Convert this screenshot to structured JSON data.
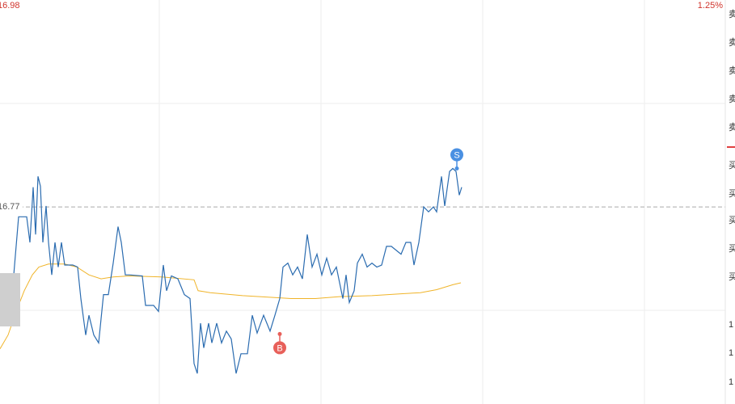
{
  "chart_data": {
    "type": "line",
    "top_price_label": "16.98",
    "top_pct_label": "1.25%",
    "ylim": [
      16.57,
      16.98
    ],
    "xlim": [
      0,
      240
    ],
    "xticks": [
      60,
      120,
      180,
      240
    ],
    "y_grid": [
      16.875,
      16.665
    ],
    "prev_close": 16.77,
    "prev_close_label": "16.77",
    "series": [
      {
        "color": "#2b6cb0",
        "x": [
          0,
          2.1,
          3.9,
          5.1,
          6.9,
          9.9,
          11.1,
          12.3,
          13.2,
          14.1,
          15,
          15.9,
          17.1,
          18,
          19.2,
          20.4,
          21.6,
          22.8,
          24,
          27,
          28.8,
          30,
          31.8,
          33,
          34.8,
          36.6,
          38.4,
          40.2,
          42,
          43.8,
          45,
          46.5,
          48,
          52.8,
          54,
          57,
          58.8,
          60.6,
          61.8,
          63.6,
          66,
          68.4,
          70.5,
          72,
          73.2,
          74.4,
          75.6,
          77.4,
          78.6,
          80.4,
          82.2,
          84,
          85.8,
          87.6,
          89.4,
          91.8,
          93.6,
          95.4,
          97.8,
          100.2,
          102,
          103.8,
          105,
          106.8,
          108.6,
          110.4,
          112.2,
          114,
          115.8,
          117.6,
          119.4,
          121.2,
          123,
          124.8,
          127.2,
          128.4,
          129.6,
          131.4,
          132.6,
          134.4,
          136.2,
          138,
          139.8,
          141.6,
          143.4,
          145.2,
          148.8,
          150.6,
          152.4,
          153.6,
          155.4,
          157.2,
          159,
          160.8,
          162,
          163.8,
          165,
          166.8,
          168,
          169.2,
          170.4,
          171.3
        ],
        "values": [
          16.652,
          16.693,
          16.668,
          16.701,
          16.76,
          16.76,
          16.734,
          16.79,
          16.742,
          16.801,
          16.791,
          16.734,
          16.771,
          16.734,
          16.701,
          16.734,
          16.709,
          16.734,
          16.711,
          16.711,
          16.709,
          16.677,
          16.64,
          16.66,
          16.64,
          16.632,
          16.681,
          16.681,
          16.713,
          16.75,
          16.734,
          16.701,
          16.701,
          16.7,
          16.67,
          16.67,
          16.664,
          16.711,
          16.685,
          16.7,
          16.697,
          16.681,
          16.677,
          16.611,
          16.601,
          16.652,
          16.627,
          16.652,
          16.632,
          16.652,
          16.632,
          16.644,
          16.636,
          16.601,
          16.621,
          16.621,
          16.66,
          16.642,
          16.66,
          16.644,
          16.66,
          16.677,
          16.709,
          16.713,
          16.701,
          16.709,
          16.697,
          16.742,
          16.709,
          16.722,
          16.701,
          16.718,
          16.701,
          16.709,
          16.677,
          16.701,
          16.673,
          16.685,
          16.713,
          16.722,
          16.709,
          16.713,
          16.709,
          16.711,
          16.73,
          16.73,
          16.722,
          16.734,
          16.734,
          16.711,
          16.734,
          16.77,
          16.765,
          16.77,
          16.765,
          16.801,
          16.771,
          16.806,
          16.809,
          16.806,
          16.782,
          16.79
        ]
      },
      {
        "color": "#f0b429",
        "x": [
          0,
          3,
          6,
          9,
          12,
          14.4,
          18,
          24,
          28.5,
          33,
          37.5,
          42,
          48,
          60,
          72,
          73.5,
          78,
          90,
          102,
          108,
          117,
          126,
          138,
          150,
          156,
          162,
          168,
          171
        ],
        "values": [
          16.626,
          16.64,
          16.664,
          16.685,
          16.701,
          16.709,
          16.712,
          16.712,
          16.709,
          16.701,
          16.697,
          16.699,
          16.7,
          16.699,
          16.696,
          16.685,
          16.683,
          16.68,
          16.678,
          16.677,
          16.677,
          16.679,
          16.68,
          16.682,
          16.683,
          16.686,
          16.691,
          16.693
        ]
      }
    ],
    "markers": [
      {
        "label": "B",
        "x": 103.8,
        "value": 16.641,
        "color": "#e8605a",
        "side": "below"
      },
      {
        "label": "S",
        "x": 169.5,
        "value": 16.809,
        "color": "#4a90e2",
        "side": "above"
      }
    ],
    "order_book_side": [
      "卖",
      "卖",
      "卖",
      "卖",
      "卖",
      "买",
      "买",
      "买",
      "买",
      "买",
      "1",
      "1",
      "1"
    ]
  }
}
